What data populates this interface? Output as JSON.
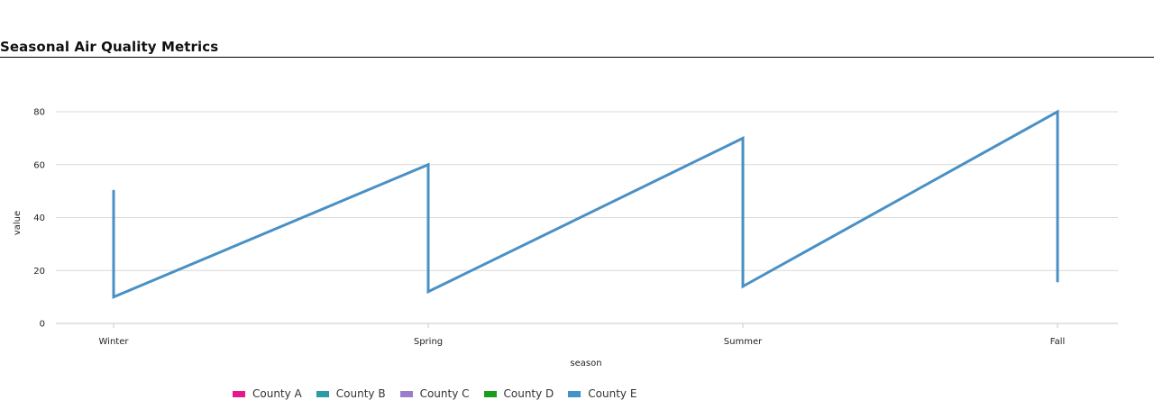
{
  "chart_data": {
    "type": "line",
    "title": "Seasonal Air Quality Metrics",
    "xlabel": "season",
    "ylabel": "value",
    "categories": [
      "Winter",
      "Spring",
      "Summer",
      "Fall"
    ],
    "ylim": [
      0,
      90
    ],
    "yticks": [
      0,
      20,
      40,
      60,
      80
    ],
    "grid": true,
    "legend_position": "bottom",
    "series": [
      {
        "name": "County A",
        "color": "#e7198a",
        "values": [
          50,
          60,
          70,
          80
        ]
      },
      {
        "name": "County B",
        "color": "#2b9ba5",
        "values": [
          10,
          12,
          14,
          16
        ]
      },
      {
        "name": "County C",
        "color": "#9b7ecb",
        "values": [
          50,
          60,
          70,
          80
        ]
      },
      {
        "name": "County D",
        "color": "#1a9d1a",
        "values": [
          10,
          12,
          14,
          16
        ]
      },
      {
        "name": "County E",
        "color": "#4393c9",
        "values": [
          50,
          60,
          70,
          80
        ]
      }
    ],
    "drawn_path": [
      {
        "x": "Winter",
        "y": 50
      },
      {
        "x": "Winter",
        "y": 10
      },
      {
        "x": "Spring",
        "y": 60
      },
      {
        "x": "Spring",
        "y": 12
      },
      {
        "x": "Summer",
        "y": 70
      },
      {
        "x": "Summer",
        "y": 14
      },
      {
        "x": "Fall",
        "y": 80
      },
      {
        "x": "Fall",
        "y": 16
      }
    ],
    "line_color": "#4a90c4"
  }
}
